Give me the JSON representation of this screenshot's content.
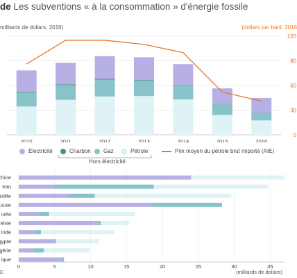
{
  "header": {
    "title_prefix": "de",
    "title": "Les subventions « à la consommation » d'énergie fossile",
    "unit_left": "milliards de dollars, 2016)",
    "unit_right": "(dollars par baril, 2016"
  },
  "legend": {
    "electricite": "Électricité",
    "charbon": "Charbon",
    "gaz": "Gaz",
    "petrole": "Pétrole",
    "prix": "Prix moyen du pétrole brut importé (AIE)",
    "hors_elec": "Hors électricité"
  },
  "colors": {
    "electricite": "#b7b0e4",
    "charbon": "#4f8f8b",
    "gaz": "#87c3c8",
    "petrole": "#dff2f5",
    "prix": "#e8772e"
  },
  "footer": {
    "source": "E",
    "units": "(milliards de dollars)"
  },
  "chart_data": [
    {
      "type": "bar",
      "stacked": true,
      "categories": [
        "2010",
        "2011",
        "2012",
        "2013",
        "2014",
        "2015",
        "2016"
      ],
      "series": [
        {
          "name": "Pétrole",
          "values": [
            207,
            255,
            280,
            283,
            258,
            145,
            105
          ]
        },
        {
          "name": "Gaz",
          "values": [
            103,
            108,
            123,
            112,
            100,
            77,
            52
          ]
        },
        {
          "name": "Charbon",
          "values": [
            5,
            5,
            5,
            5,
            3,
            3,
            2
          ]
        },
        {
          "name": "Électricité",
          "values": [
            155,
            157,
            166,
            166,
            155,
            114,
            110
          ]
        }
      ],
      "line": {
        "name": "Prix moyen du pétrole brut importé (AIE)",
        "axis": "right",
        "values": [
          86,
          115,
          115,
          110,
          100,
          52,
          41
        ]
      },
      "y_right_ticks": [
        0,
        30,
        60,
        90,
        120
      ],
      "y_right_lim": [
        0,
        120
      ],
      "y_left_lim": [
        0,
        720
      ],
      "grid": true
    },
    {
      "type": "bar",
      "orientation": "horizontal",
      "stacked": true,
      "categories": [
        "Chine",
        "Iran",
        "udite",
        "ussie",
        "uela",
        "nésie",
        "Inde",
        "gypte",
        "lgérie",
        "ique"
      ],
      "series": [
        {
          "name": "Électricité",
          "values": [
            24,
            5,
            7,
            18.7,
            2.8,
            11,
            2.3,
            5,
            2,
            6
          ]
        },
        {
          "name": "Charbon",
          "values": [
            0,
            0,
            0,
            0,
            0,
            0,
            0,
            0,
            0,
            0
          ]
        },
        {
          "name": "Gaz",
          "values": [
            0,
            13.8,
            3.6,
            9.6,
            1.4,
            0.4,
            0.8,
            0.2,
            1.5,
            0.3
          ]
        },
        {
          "name": "Pétrole",
          "values": [
            13,
            16,
            19,
            0,
            12,
            4,
            10.3,
            6,
            6.3,
            0
          ]
        }
      ],
      "xticks": [
        0,
        5,
        10,
        15,
        20,
        25,
        30,
        35
      ],
      "xlim": [
        0,
        37
      ],
      "xlabel": "(milliards de dollars)"
    }
  ]
}
